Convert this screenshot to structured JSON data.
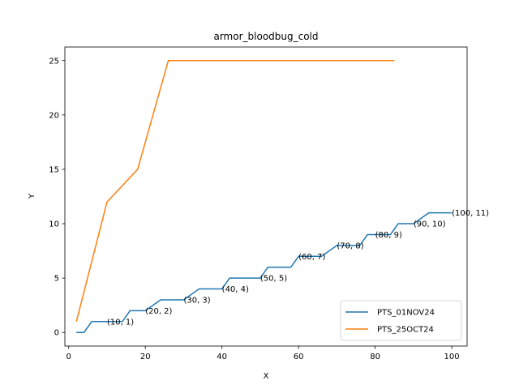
{
  "chart_data": {
    "type": "line",
    "title": "armor_bloodbug_cold",
    "xlabel": "X",
    "ylabel": "Y",
    "xlim": [
      -1,
      104
    ],
    "ylim": [
      -1.25,
      26.25
    ],
    "xticks": [
      0,
      20,
      40,
      60,
      80,
      100
    ],
    "yticks": [
      0,
      5,
      10,
      15,
      20,
      25
    ],
    "grid": false,
    "legend_position": "lower-right",
    "series": [
      {
        "name": "PTS_01NOV24",
        "color": "#1f77b4",
        "x": [
          2,
          4,
          6,
          10,
          14,
          16,
          20,
          24,
          30,
          34,
          40,
          42,
          50,
          52,
          58,
          60,
          64,
          66,
          70,
          76,
          78,
          80,
          84,
          86,
          90,
          94,
          100
        ],
        "y": [
          0,
          0,
          1,
          1,
          1,
          2,
          2,
          3,
          3,
          4,
          4,
          5,
          5,
          6,
          6,
          7,
          7,
          7,
          8,
          8,
          9,
          9,
          9,
          10,
          10,
          11,
          11
        ]
      },
      {
        "name": "PTS_25OCT24",
        "color": "#ff7f0e",
        "x": [
          2,
          10,
          18,
          26,
          85
        ],
        "y": [
          1,
          12,
          15,
          25,
          25
        ]
      }
    ],
    "annotations": [
      {
        "x": 10,
        "y": 1,
        "text": "(10, 1)"
      },
      {
        "x": 20,
        "y": 2,
        "text": "(20, 2)"
      },
      {
        "x": 30,
        "y": 3,
        "text": "(30, 3)"
      },
      {
        "x": 40,
        "y": 4,
        "text": "(40, 4)"
      },
      {
        "x": 50,
        "y": 5,
        "text": "(50, 5)"
      },
      {
        "x": 60,
        "y": 7,
        "text": "(60, 7)"
      },
      {
        "x": 70,
        "y": 8,
        "text": "(70, 8)"
      },
      {
        "x": 80,
        "y": 9,
        "text": "(80, 9)"
      },
      {
        "x": 90,
        "y": 10,
        "text": "(90, 10)"
      },
      {
        "x": 100,
        "y": 11,
        "text": "(100, 11)"
      }
    ]
  }
}
